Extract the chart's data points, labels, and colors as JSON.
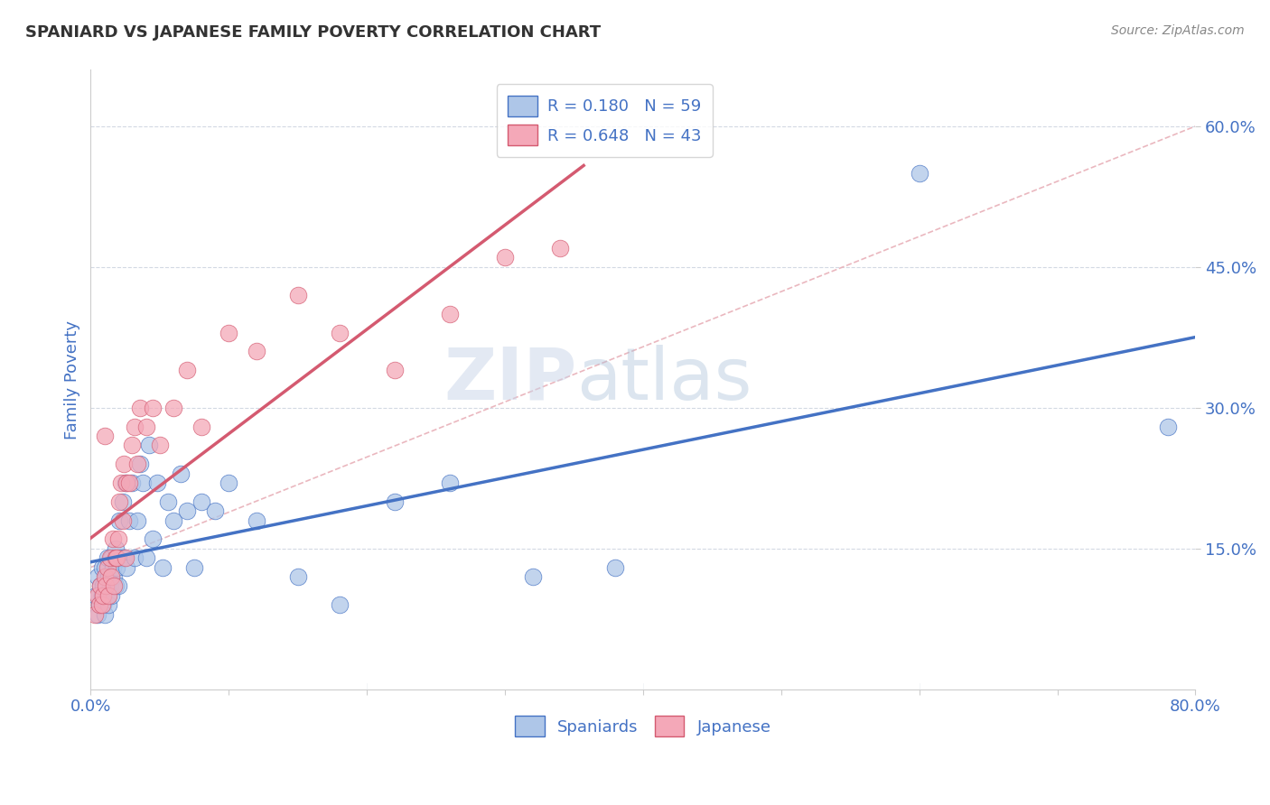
{
  "title": "SPANIARD VS JAPANESE FAMILY POVERTY CORRELATION CHART",
  "source_text": "Source: ZipAtlas.com",
  "ylabel": "Family Poverty",
  "watermark_zip": "ZIP",
  "watermark_atlas": "atlas",
  "x_min": 0.0,
  "x_max": 0.8,
  "y_min": 0.0,
  "y_max": 0.66,
  "x_ticks": [
    0.0,
    0.1,
    0.2,
    0.3,
    0.4,
    0.5,
    0.6,
    0.7,
    0.8
  ],
  "x_tick_labels": [
    "0.0%",
    "",
    "",
    "",
    "",
    "",
    "",
    "",
    "80.0%"
  ],
  "y_ticks": [
    0.15,
    0.3,
    0.45,
    0.6
  ],
  "y_tick_labels": [
    "15.0%",
    "30.0%",
    "45.0%",
    "60.0%"
  ],
  "spaniard_color": "#aec6e8",
  "japanese_color": "#f4a8b8",
  "spaniard_edge_color": "#4472c4",
  "japanese_edge_color": "#d45a70",
  "spaniard_line_color": "#4472c4",
  "japanese_line_color": "#d45a70",
  "diagonal_color": "#e8b0b8",
  "R_spaniard": 0.18,
  "N_spaniard": 59,
  "R_japanese": 0.648,
  "N_japanese": 43,
  "title_color": "#333333",
  "axis_label_color": "#4472c4",
  "tick_label_color": "#4472c4",
  "background_color": "#ffffff",
  "grid_color": "#c8d0dc",
  "spaniard_x": [
    0.004,
    0.005,
    0.005,
    0.006,
    0.007,
    0.008,
    0.008,
    0.009,
    0.009,
    0.01,
    0.01,
    0.011,
    0.012,
    0.012,
    0.013,
    0.013,
    0.014,
    0.015,
    0.015,
    0.016,
    0.017,
    0.018,
    0.018,
    0.019,
    0.02,
    0.021,
    0.022,
    0.023,
    0.024,
    0.025,
    0.026,
    0.028,
    0.03,
    0.032,
    0.034,
    0.036,
    0.038,
    0.04,
    0.042,
    0.045,
    0.048,
    0.052,
    0.056,
    0.06,
    0.065,
    0.07,
    0.075,
    0.08,
    0.09,
    0.1,
    0.12,
    0.15,
    0.18,
    0.22,
    0.26,
    0.32,
    0.38,
    0.6,
    0.78
  ],
  "spaniard_y": [
    0.1,
    0.08,
    0.12,
    0.09,
    0.11,
    0.1,
    0.13,
    0.09,
    0.11,
    0.08,
    0.13,
    0.12,
    0.1,
    0.14,
    0.12,
    0.09,
    0.11,
    0.1,
    0.14,
    0.13,
    0.12,
    0.15,
    0.11,
    0.13,
    0.11,
    0.18,
    0.14,
    0.2,
    0.14,
    0.22,
    0.13,
    0.18,
    0.22,
    0.14,
    0.18,
    0.24,
    0.22,
    0.14,
    0.26,
    0.16,
    0.22,
    0.13,
    0.2,
    0.18,
    0.23,
    0.19,
    0.13,
    0.2,
    0.19,
    0.22,
    0.18,
    0.12,
    0.09,
    0.2,
    0.22,
    0.12,
    0.13,
    0.55,
    0.28
  ],
  "japanese_x": [
    0.003,
    0.005,
    0.006,
    0.007,
    0.008,
    0.009,
    0.01,
    0.01,
    0.011,
    0.012,
    0.013,
    0.014,
    0.015,
    0.016,
    0.017,
    0.018,
    0.019,
    0.02,
    0.021,
    0.022,
    0.023,
    0.024,
    0.025,
    0.026,
    0.028,
    0.03,
    0.032,
    0.034,
    0.036,
    0.04,
    0.045,
    0.05,
    0.06,
    0.07,
    0.08,
    0.1,
    0.12,
    0.15,
    0.18,
    0.22,
    0.26,
    0.3,
    0.34
  ],
  "japanese_y": [
    0.08,
    0.1,
    0.09,
    0.11,
    0.09,
    0.1,
    0.12,
    0.27,
    0.11,
    0.13,
    0.1,
    0.14,
    0.12,
    0.16,
    0.11,
    0.14,
    0.14,
    0.16,
    0.2,
    0.22,
    0.18,
    0.24,
    0.14,
    0.22,
    0.22,
    0.26,
    0.28,
    0.24,
    0.3,
    0.28,
    0.3,
    0.26,
    0.3,
    0.34,
    0.28,
    0.38,
    0.36,
    0.42,
    0.38,
    0.34,
    0.4,
    0.46,
    0.47
  ]
}
